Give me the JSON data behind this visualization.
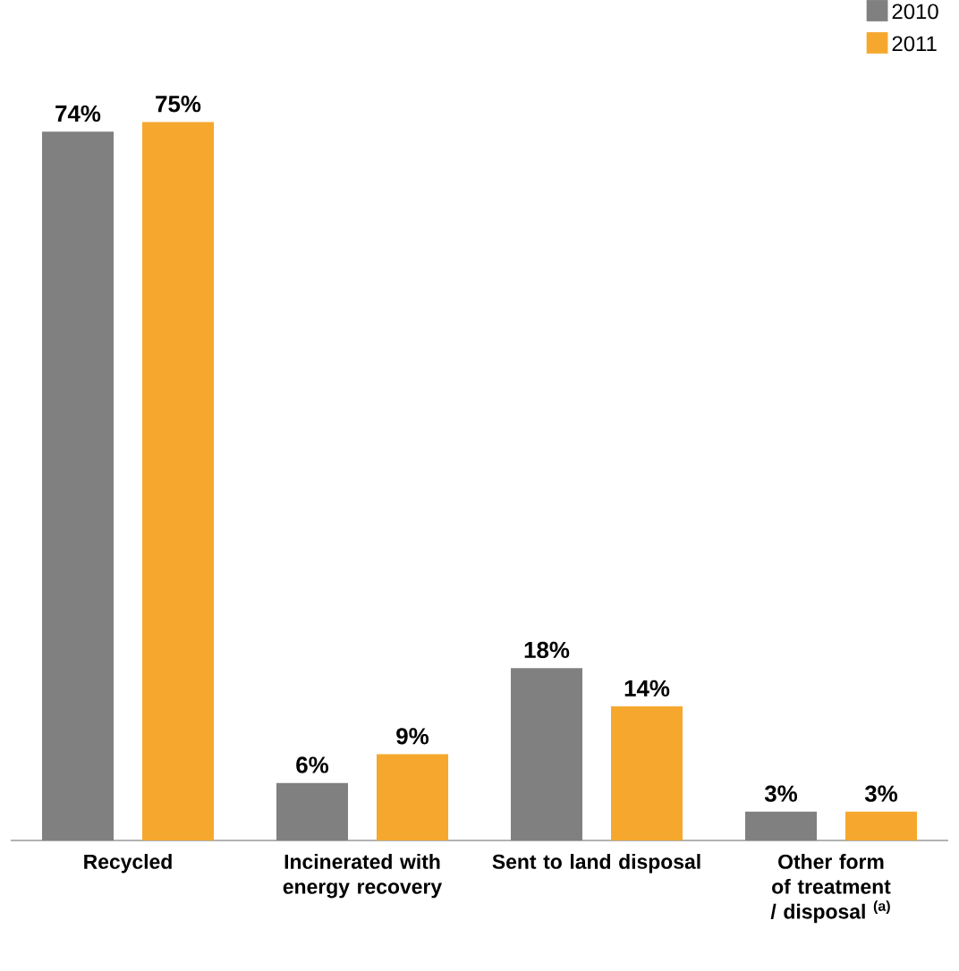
{
  "chart_data": {
    "type": "bar",
    "categories": [
      "Recycled",
      "Incinerated with energy recovery",
      "Sent to land disposal",
      "Other form of treatment / disposal $^{(a)}$"
    ],
    "series": [
      {
        "name": "2010",
        "color": "#808080",
        "values": [
          74,
          6,
          18,
          3
        ],
        "value_labels": [
          "74%",
          "6%",
          "18%",
          "3%"
        ]
      },
      {
        "name": "2011",
        "color": "#f6a82e",
        "values": [
          75,
          9,
          14,
          3
        ],
        "value_labels": [
          "75%",
          "9%",
          "14%",
          "3%"
        ]
      }
    ],
    "legend": "top right"
  }
}
